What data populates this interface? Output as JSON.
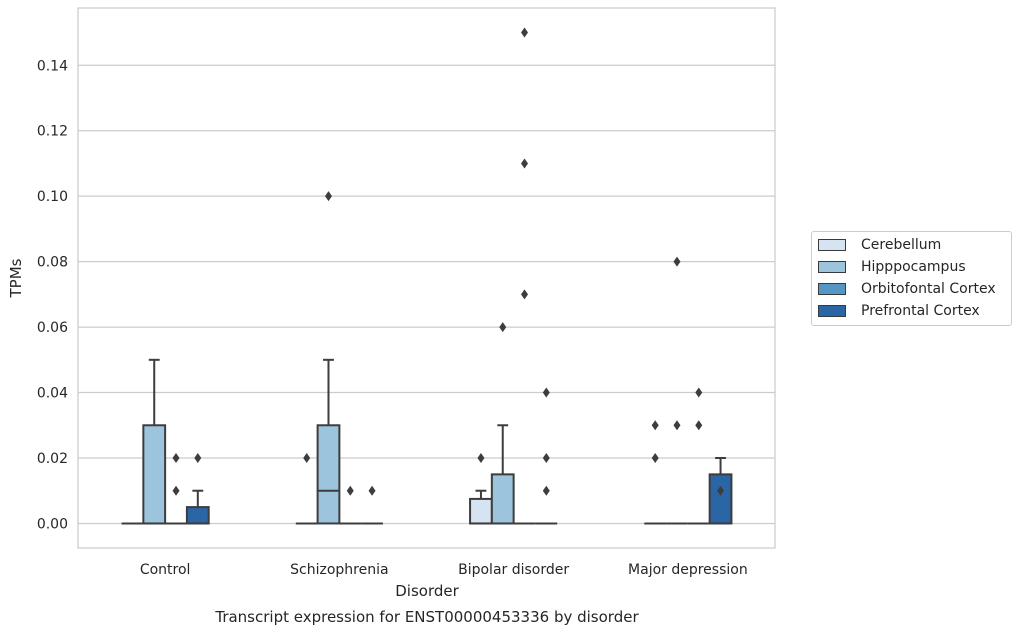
{
  "chart_data": {
    "type": "box",
    "title": "",
    "xlabel": "Disorder",
    "ylabel": "TPMs",
    "caption": "Transcript expression for ENST00000453336 by disorder",
    "categories": [
      "Control",
      "Schizophrenia",
      "Bipolar disorder",
      "Major depression"
    ],
    "ylim": [
      -0.0075,
      0.1575
    ],
    "yticks": [
      0.0,
      0.02,
      0.04,
      0.06,
      0.08,
      0.1,
      0.12,
      0.14
    ],
    "ytick_labels": [
      "0.00",
      "0.02",
      "0.04",
      "0.06",
      "0.08",
      "0.10",
      "0.12",
      "0.14"
    ],
    "grid": true,
    "legend_position": "right",
    "series": [
      {
        "name": "Cerebellum",
        "color": "#d6e4f1",
        "boxes": [
          {
            "q1": 0,
            "median": 0,
            "q3": 0,
            "whisker_low": 0,
            "whisker_high": 0,
            "outliers": []
          },
          {
            "q1": 0,
            "median": 0,
            "q3": 0,
            "whisker_low": 0,
            "whisker_high": 0,
            "outliers": [
              0.02
            ]
          },
          {
            "q1": 0,
            "median": 0,
            "q3": 0.0075,
            "whisker_low": 0,
            "whisker_high": 0.01,
            "outliers": [
              0.02
            ]
          },
          {
            "q1": 0,
            "median": 0,
            "q3": 0,
            "whisker_low": 0,
            "whisker_high": 0,
            "outliers": [
              0.02,
              0.03
            ]
          }
        ]
      },
      {
        "name": "Hipppocampus",
        "color": "#9cc4dd",
        "boxes": [
          {
            "q1": 0,
            "median": 0,
            "q3": 0.03,
            "whisker_low": 0,
            "whisker_high": 0.05,
            "outliers": []
          },
          {
            "q1": 0,
            "median": 0.01,
            "q3": 0.03,
            "whisker_low": 0,
            "whisker_high": 0.05,
            "outliers": [
              0.1
            ]
          },
          {
            "q1": 0,
            "median": 0,
            "q3": 0.015,
            "whisker_low": 0,
            "whisker_high": 0.03,
            "outliers": [
              0.06
            ]
          },
          {
            "q1": 0,
            "median": 0,
            "q3": 0,
            "whisker_low": 0,
            "whisker_high": 0,
            "outliers": [
              0.03,
              0.08
            ]
          }
        ]
      },
      {
        "name": "Orbitofontal Cortex",
        "color": "#5596c5",
        "boxes": [
          {
            "q1": 0,
            "median": 0,
            "q3": 0,
            "whisker_low": 0,
            "whisker_high": 0,
            "outliers": [
              0.01,
              0.02
            ]
          },
          {
            "q1": 0,
            "median": 0,
            "q3": 0,
            "whisker_low": 0,
            "whisker_high": 0,
            "outliers": [
              0.01
            ]
          },
          {
            "q1": 0,
            "median": 0,
            "q3": 0,
            "whisker_low": 0,
            "whisker_high": 0,
            "outliers": [
              0.07,
              0.11,
              0.15
            ]
          },
          {
            "q1": 0,
            "median": 0,
            "q3": 0,
            "whisker_low": 0,
            "whisker_high": 0,
            "outliers": [
              0.03,
              0.04
            ]
          }
        ]
      },
      {
        "name": "Prefrontal Cortex",
        "color": "#2a65a6",
        "boxes": [
          {
            "q1": 0,
            "median": 0,
            "q3": 0.005,
            "whisker_low": 0,
            "whisker_high": 0.01,
            "outliers": [
              0.02
            ]
          },
          {
            "q1": 0,
            "median": 0,
            "q3": 0,
            "whisker_low": 0,
            "whisker_high": 0,
            "outliers": [
              0.01
            ]
          },
          {
            "q1": 0,
            "median": 0,
            "q3": 0,
            "whisker_low": 0,
            "whisker_high": 0,
            "outliers": [
              0.01,
              0.02,
              0.04
            ]
          },
          {
            "q1": 0,
            "median": 0,
            "q3": 0.015,
            "whisker_low": 0,
            "whisker_high": 0.02,
            "outliers": [
              0.01
            ]
          }
        ]
      }
    ]
  }
}
